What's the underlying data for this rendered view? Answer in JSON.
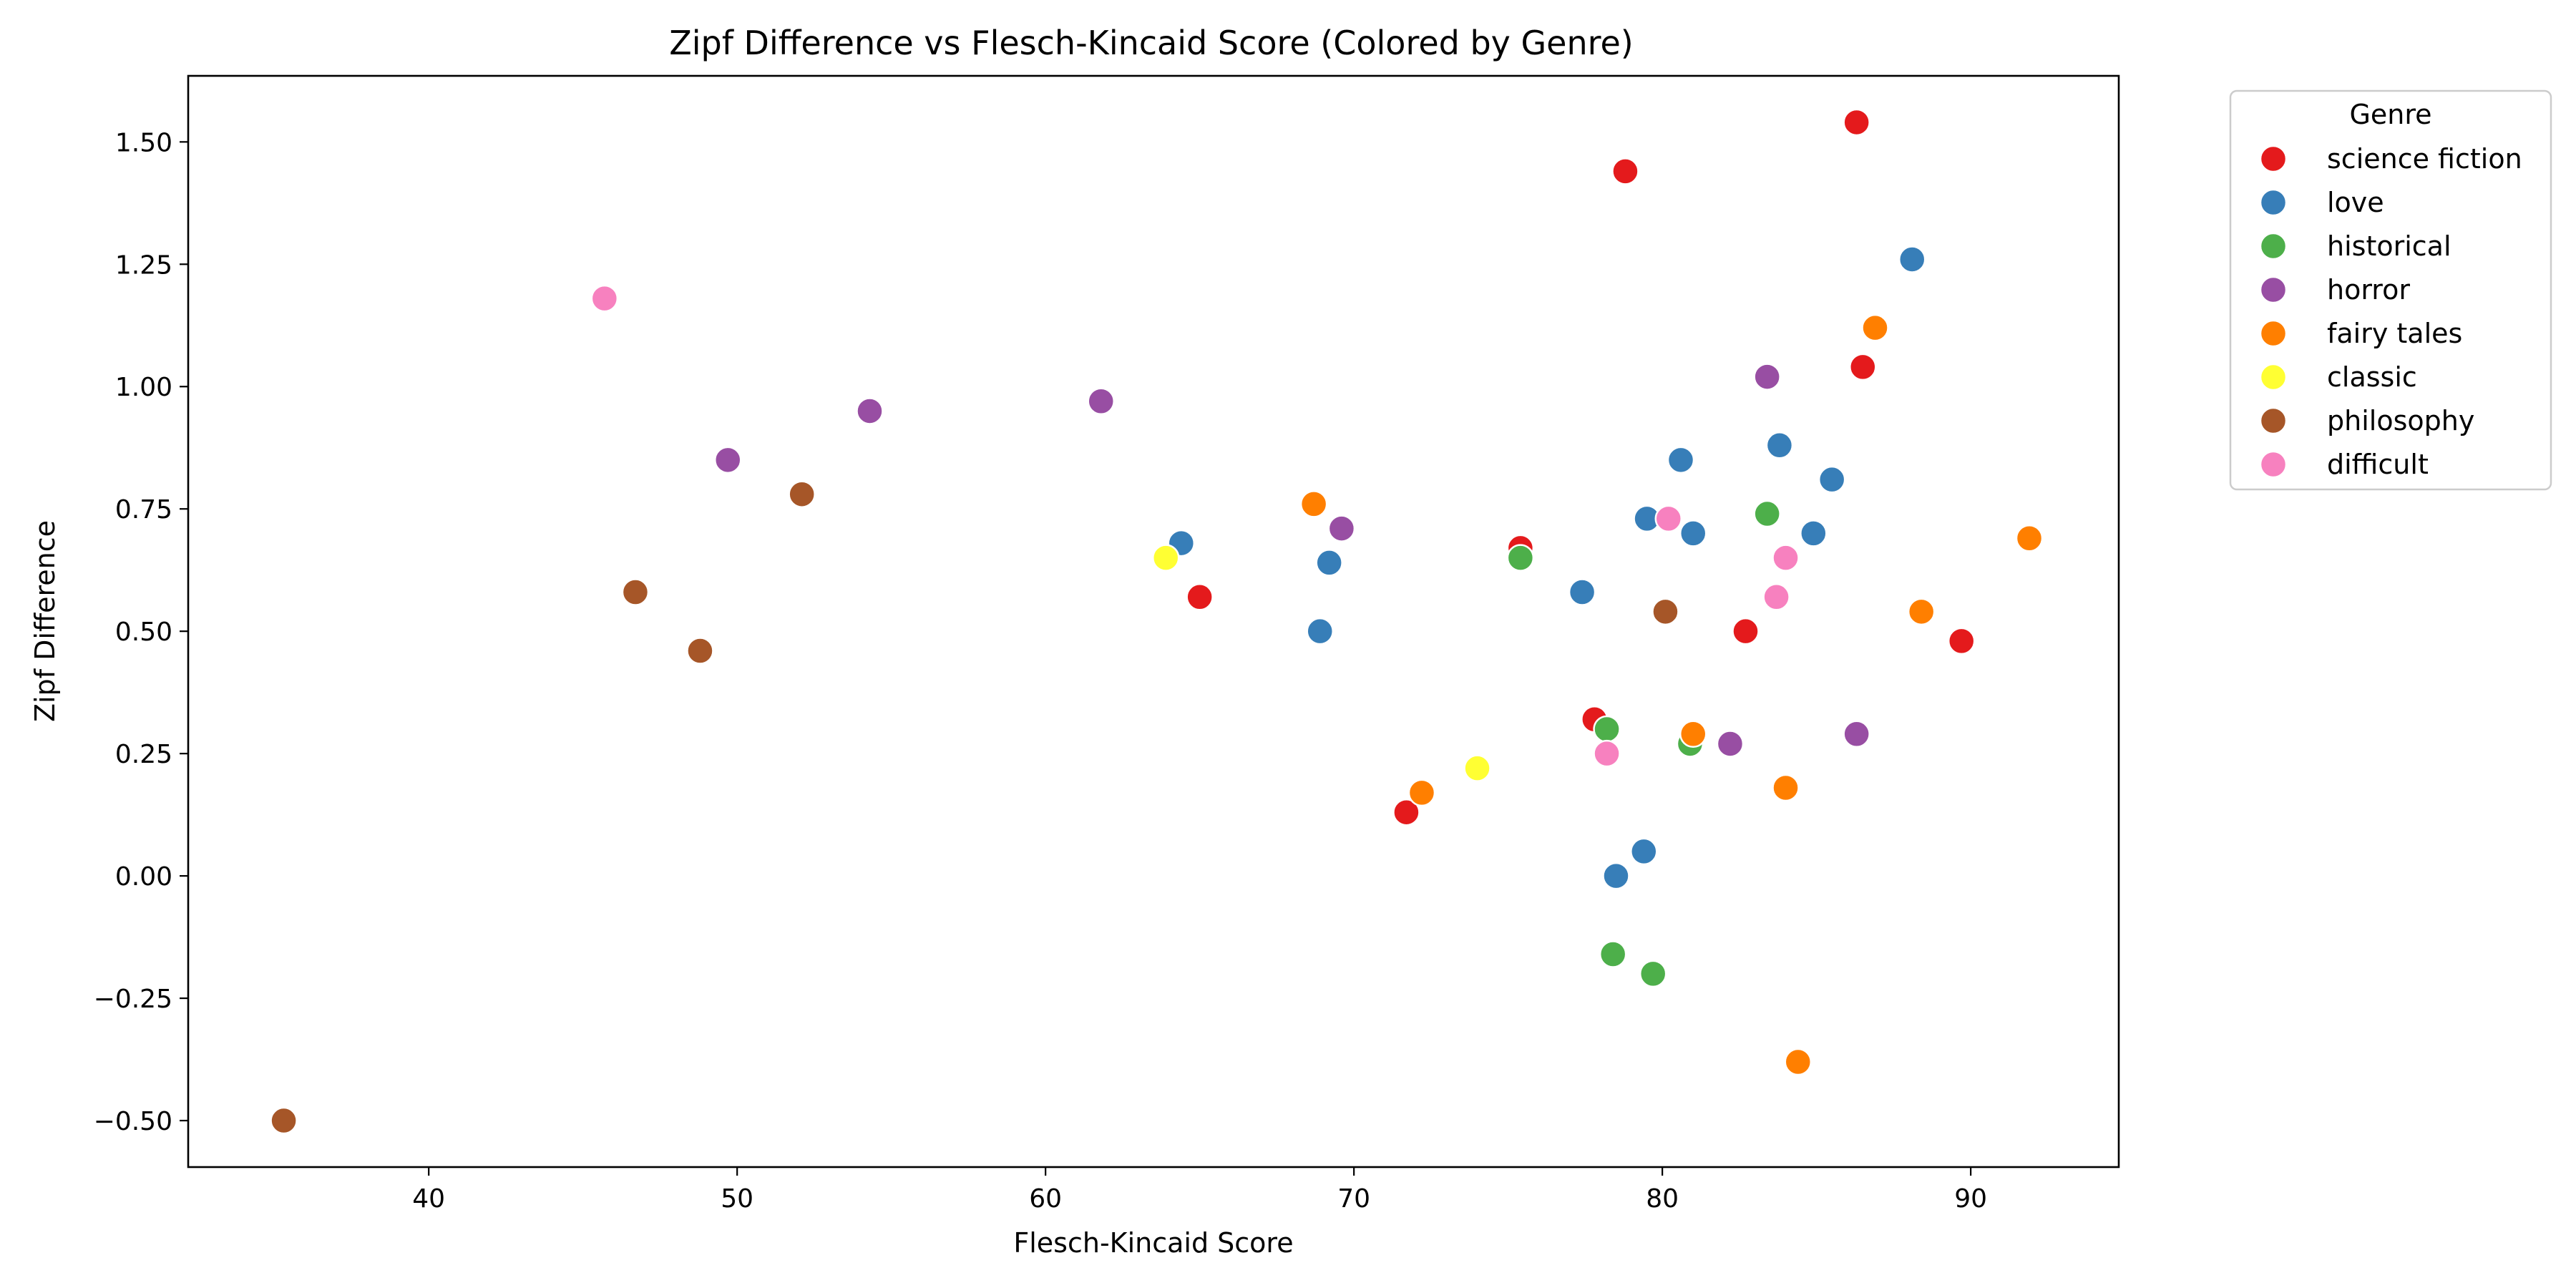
{
  "chart_data": {
    "type": "scatter",
    "title": "Zipf Difference vs Flesch-Kincaid Score (Colored by Genre)",
    "xlabel": "Flesch-Kincaid Score",
    "ylabel": "Zipf Difference",
    "xlim": [
      32.2,
      94.8
    ],
    "ylim": [
      -0.595,
      1.635
    ],
    "xticks": [
      40,
      50,
      60,
      70,
      80,
      90
    ],
    "yticks": [
      -0.5,
      -0.25,
      0.0,
      0.25,
      0.5,
      0.75,
      1.0,
      1.25,
      1.5
    ],
    "xtick_labels": [
      "40",
      "50",
      "60",
      "70",
      "80",
      "90"
    ],
    "ytick_labels": [
      "−0.50",
      "−0.25",
      "0.00",
      "0.25",
      "0.50",
      "0.75",
      "1.00",
      "1.25",
      "1.50"
    ],
    "grid": false,
    "legend": {
      "title": "Genre",
      "placement": "outside-upper-right"
    },
    "series": [
      {
        "name": "science fiction",
        "color": "#e41a1c",
        "points": [
          [
            86.3,
            1.54
          ],
          [
            78.8,
            1.44
          ],
          [
            86.5,
            1.04
          ],
          [
            75.4,
            0.67
          ],
          [
            65.0,
            0.57
          ],
          [
            82.7,
            0.5
          ],
          [
            89.7,
            0.48
          ],
          [
            77.8,
            0.32
          ],
          [
            71.7,
            0.13
          ]
        ]
      },
      {
        "name": "love",
        "color": "#377eb8",
        "points": [
          [
            88.1,
            1.26
          ],
          [
            83.8,
            0.88
          ],
          [
            80.6,
            0.85
          ],
          [
            85.5,
            0.81
          ],
          [
            79.5,
            0.73
          ],
          [
            81.0,
            0.7
          ],
          [
            84.9,
            0.7
          ],
          [
            64.4,
            0.68
          ],
          [
            69.2,
            0.64
          ],
          [
            77.4,
            0.58
          ],
          [
            68.9,
            0.5
          ],
          [
            79.4,
            0.05
          ],
          [
            78.5,
            0.0
          ]
        ]
      },
      {
        "name": "historical",
        "color": "#4daf4a",
        "points": [
          [
            83.4,
            0.74
          ],
          [
            75.4,
            0.65
          ],
          [
            78.2,
            0.3
          ],
          [
            80.9,
            0.27
          ],
          [
            78.4,
            -0.16
          ],
          [
            79.7,
            -0.2
          ]
        ]
      },
      {
        "name": "horror",
        "color": "#984ea3",
        "points": [
          [
            83.4,
            1.02
          ],
          [
            61.8,
            0.97
          ],
          [
            54.3,
            0.95
          ],
          [
            49.7,
            0.85
          ],
          [
            69.6,
            0.71
          ],
          [
            82.2,
            0.27
          ],
          [
            86.3,
            0.29
          ]
        ]
      },
      {
        "name": "fairy tales",
        "color": "#ff7f00",
        "points": [
          [
            86.9,
            1.12
          ],
          [
            68.7,
            0.76
          ],
          [
            91.9,
            0.69
          ],
          [
            88.4,
            0.54
          ],
          [
            81.0,
            0.29
          ],
          [
            84.0,
            0.18
          ],
          [
            72.2,
            0.17
          ],
          [
            84.4,
            -0.38
          ]
        ]
      },
      {
        "name": "classic",
        "color": "#ffff33",
        "points": [
          [
            63.9,
            0.65
          ],
          [
            74.0,
            0.22
          ]
        ]
      },
      {
        "name": "philosophy",
        "color": "#a65628",
        "points": [
          [
            52.1,
            0.78
          ],
          [
            46.7,
            0.58
          ],
          [
            80.1,
            0.54
          ],
          [
            48.8,
            0.46
          ],
          [
            35.3,
            -0.5
          ]
        ]
      },
      {
        "name": "difficult",
        "color": "#f781bf",
        "points": [
          [
            45.7,
            1.18
          ],
          [
            80.2,
            0.73
          ],
          [
            84.0,
            0.65
          ],
          [
            83.7,
            0.57
          ],
          [
            78.2,
            0.25
          ]
        ]
      }
    ]
  }
}
